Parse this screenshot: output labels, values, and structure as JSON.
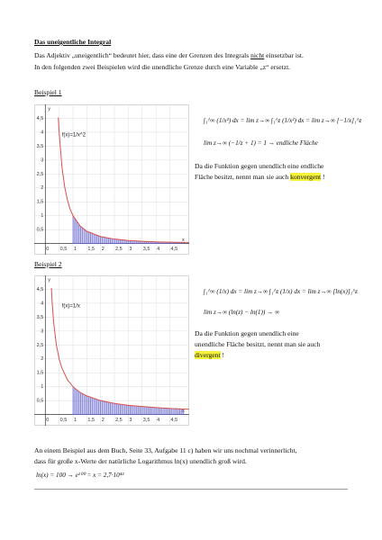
{
  "title": "Das uneigentliche Integral",
  "intro": [
    {
      "parts": [
        "Das Adjektiv „uneigentlich“ bedeutet hier, dass eine der Grenzen des Integrals ",
        "nicht",
        " einsetzbar ist."
      ]
    },
    {
      "parts": [
        "In den folgenden zwei Beispielen wird die unendliche Grenze durch eine Variable „z“ ersetzt."
      ]
    }
  ],
  "examples": [
    {
      "heading": "Beispiel 1",
      "chart": {
        "type": "line",
        "label": "f(x)=1/x^2",
        "color": "#d9534f",
        "fill_color": "#5b5bd0",
        "fill_range": [
          1,
          5
        ],
        "x": [
          0.47,
          0.5,
          0.6,
          0.7,
          0.8,
          0.9,
          1,
          1.25,
          1.5,
          2,
          2.5,
          3,
          3.5,
          4,
          4.5,
          5,
          5.2
        ],
        "values": [
          4.53,
          4,
          2.78,
          2.04,
          1.56,
          1.23,
          1,
          0.64,
          0.44,
          0.25,
          0.16,
          0.11,
          0.08,
          0.06,
          0.05,
          0.04,
          0.04
        ],
        "xlim": [
          -0.4,
          5.2
        ],
        "ylim": [
          -0.4,
          5
        ],
        "xticks": [
          0,
          {
            "value": 0.5,
            "label": "0,5"
          },
          1,
          {
            "value": 1.5,
            "label": "1,5"
          },
          2,
          {
            "value": 2.5,
            "label": "2,5"
          },
          3,
          {
            "value": 3.5,
            "label": "3,5"
          },
          4,
          {
            "value": 4.5,
            "label": "4,5"
          }
        ],
        "yticks": [
          {
            "value": 0.5,
            "label": "0,5"
          },
          1,
          {
            "value": 1.5,
            "label": "1,5"
          },
          2,
          {
            "value": 2.5,
            "label": "2,5"
          },
          3,
          {
            "value": 3.5,
            "label": "3,5"
          },
          4,
          {
            "value": 4.5,
            "label": "4,5"
          }
        ],
        "grid": true,
        "x_axis_label": "x",
        "y_axis_label": "y"
      },
      "formula": [
        "∫₁^∞ (1/x²) dx = lim z→∞ ∫₁^z (1/x²) dx = lim z→∞ [−1/x]₁^z",
        "lim z→∞ (−1/z + 1) = 1 → endliche Fläche"
      ],
      "text": [
        {
          "parts": [
            "Da die Funktion gegen unendlich eine endliche"
          ]
        },
        {
          "parts": [
            "Fläche besitzt, nennt man sie auch ",
            "konvergent",
            " !"
          ]
        }
      ]
    },
    {
      "heading": "Beispiel 2",
      "chart": {
        "type": "line",
        "label": "f(x)=1/x",
        "color": "#d9534f",
        "fill_color": "#5b5bd0",
        "fill_range": [
          1,
          5
        ],
        "x": [
          0.22,
          0.25,
          0.3,
          0.4,
          0.5,
          0.6,
          0.8,
          1,
          1.25,
          1.5,
          2,
          2.5,
          3,
          3.5,
          4,
          4.5,
          5,
          5.2
        ],
        "values": [
          4.55,
          4,
          3.33,
          2.5,
          2,
          1.67,
          1.25,
          1,
          0.8,
          0.67,
          0.5,
          0.4,
          0.33,
          0.29,
          0.25,
          0.22,
          0.2,
          0.19
        ],
        "xlim": [
          -0.4,
          5.2
        ],
        "ylim": [
          -0.4,
          5
        ],
        "xticks": [
          0,
          {
            "value": 0.5,
            "label": "0,5"
          },
          1,
          {
            "value": 1.5,
            "label": "1,5"
          },
          2,
          {
            "value": 2.5,
            "label": "2,5"
          },
          3,
          {
            "value": 3.5,
            "label": "3,5"
          },
          4,
          {
            "value": 4.5,
            "label": "4,5"
          }
        ],
        "yticks": [
          {
            "value": 0.5,
            "label": "0,5"
          },
          1,
          {
            "value": 1.5,
            "label": "1,5"
          },
          2,
          {
            "value": 2.5,
            "label": "2,5"
          },
          3,
          {
            "value": 3.5,
            "label": "3,5"
          },
          4,
          {
            "value": 4.5,
            "label": "4,5"
          }
        ],
        "grid": true,
        "x_axis_label": "x",
        "y_axis_label": "y"
      },
      "formula": [
        "∫₁^∞ (1/x) dx = lim z→∞ ∫₁^z (1/x) dx = lim z→∞ [ln(x)]₁^z",
        "lim z→∞ (ln(z) − ln(1)) → ∞"
      ],
      "text": [
        {
          "parts": [
            "Da die Funktion gegen unendlich eine"
          ]
        },
        {
          "parts": [
            "unendliche Fläche besitzt, nennt man sie auch"
          ]
        },
        {
          "parts": [
            "divergent",
            " !"
          ]
        }
      ]
    }
  ],
  "outro": [
    {
      "parts": [
        "An einem Beispiel aus dem Buch, Seite 33, Aufgabe 11 c) haben wir uns nochmal verinnerlicht,"
      ]
    },
    {
      "parts": [
        "dass für große x-Werte der natürliche Logarithmus ln(x) unendlich groß wird."
      ]
    }
  ],
  "outro_formula": "ln(x) = 100 → e¹⁰⁰ = x = 2,7·10⁴³"
}
